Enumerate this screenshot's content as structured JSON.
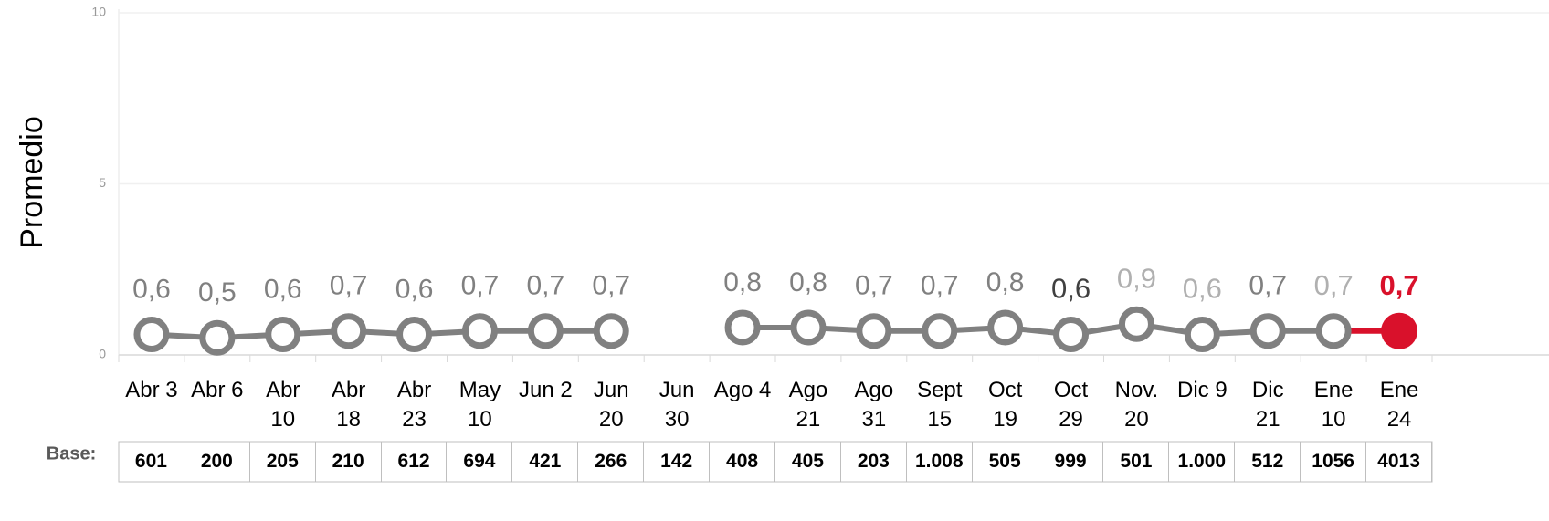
{
  "chart_data": {
    "type": "line",
    "y_label": "Promedio",
    "categories": [
      "Abr 3",
      "Abr 6",
      "Abr 10",
      "Abr 18",
      "Abr 23",
      "May 10",
      "Jun 2",
      "Jun 20",
      "Jun 30",
      "Ago 4",
      "Ago 21",
      "Ago 31",
      "Sept 15",
      "Oct 19",
      "Oct 29",
      "Nov. 20",
      "Dic 9",
      "Dic 21",
      "Ene 10",
      "Ene 24"
    ],
    "series": [
      {
        "name": "Promedio",
        "color": "#808080",
        "values": [
          0.6,
          0.5,
          0.6,
          0.7,
          0.6,
          0.7,
          0.7,
          0.7,
          null,
          0.8,
          0.8,
          0.7,
          0.7,
          0.8,
          0.6,
          0.9,
          0.6,
          0.7,
          0.7,
          0.7
        ],
        "value_labels": [
          "0,6",
          "0,5",
          "0,6",
          "0,7",
          "0,6",
          "0,7",
          "0,7",
          "0,7",
          null,
          "0,8",
          "0,8",
          "0,7",
          "0,7",
          "0,8",
          "0,6",
          "0,9",
          "0,6",
          "0,7",
          "0,7",
          "0,7"
        ],
        "point_colors": [
          "#808080",
          "#808080",
          "#808080",
          "#808080",
          "#808080",
          "#808080",
          "#808080",
          "#808080",
          null,
          "#808080",
          "#808080",
          "#808080",
          "#808080",
          "#808080",
          "#808080",
          "#808080",
          "#808080",
          "#808080",
          "#808080",
          "#d9112b"
        ],
        "label_colors": [
          "#808080",
          "#808080",
          "#808080",
          "#808080",
          "#808080",
          "#808080",
          "#808080",
          "#808080",
          null,
          "#808080",
          "#808080",
          "#808080",
          "#808080",
          "#808080",
          "#404040",
          "#b0b0b0",
          "#b0b0b0",
          "#808080",
          "#b0b0b0",
          "#d9112b"
        ]
      }
    ],
    "ylim": [
      0,
      10
    ],
    "yticks": [
      0,
      5,
      10
    ],
    "grid": true
  },
  "table": {
    "label": "Base:",
    "values": [
      "601",
      "200",
      "205",
      "210",
      "612",
      "694",
      "421",
      "266",
      "142",
      "408",
      "405",
      "203",
      "1.008",
      "505",
      "999",
      "501",
      "1.000",
      "512",
      "1056",
      "4013"
    ]
  }
}
